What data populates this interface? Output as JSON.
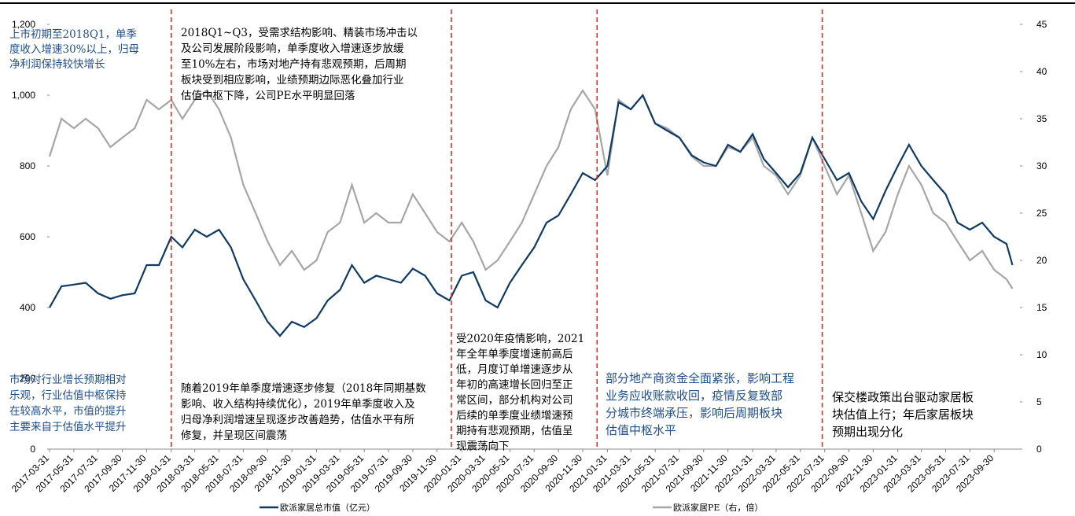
{
  "chart_data": {
    "type": "line",
    "x": [
      "2017-03-31",
      "2017-04-30",
      "2017-05-31",
      "2017-06-30",
      "2017-07-31",
      "2017-08-31",
      "2017-09-30",
      "2017-10-31",
      "2017-11-30",
      "2017-12-31",
      "2018-01-31",
      "2018-02-28",
      "2018-03-31",
      "2018-04-30",
      "2018-05-31",
      "2018-06-30",
      "2018-07-31",
      "2018-08-31",
      "2018-09-30",
      "2018-10-31",
      "2018-11-30",
      "2018-12-31",
      "2019-01-31",
      "2019-02-28",
      "2019-03-31",
      "2019-04-30",
      "2019-05-31",
      "2019-06-30",
      "2019-07-31",
      "2019-08-31",
      "2019-09-30",
      "2019-10-31",
      "2019-11-30",
      "2019-12-31",
      "2020-01-31",
      "2020-02-29",
      "2020-03-31",
      "2020-04-30",
      "2020-05-31",
      "2020-06-30",
      "2020-07-31",
      "2020-08-31",
      "2020-09-30",
      "2020-10-31",
      "2020-11-30",
      "2020-12-31",
      "2021-01-31",
      "2021-02-28",
      "2021-03-31",
      "2021-04-30",
      "2021-05-31",
      "2021-06-30",
      "2021-07-31",
      "2021-08-31",
      "2021-09-30",
      "2021-10-31",
      "2021-11-30",
      "2021-12-31",
      "2022-01-31",
      "2022-02-28",
      "2022-03-31",
      "2022-04-30",
      "2022-05-31",
      "2022-06-30",
      "2022-07-31",
      "2022-08-31",
      "2022-09-30",
      "2022-10-31",
      "2022-11-30",
      "2022-12-31",
      "2023-01-31",
      "2023-02-28",
      "2023-03-31",
      "2023-04-30",
      "2023-05-31",
      "2023-06-30",
      "2023-07-31",
      "2023-08-31",
      "2023-09-30",
      "2023-10-31",
      "2023-11-15"
    ],
    "series": [
      {
        "name": "欧派家居总市值（亿元）",
        "color": "#0d3a66",
        "axis": "y",
        "values": [
          400,
          460,
          465,
          470,
          440,
          425,
          435,
          440,
          520,
          520,
          600,
          570,
          620,
          600,
          620,
          570,
          480,
          420,
          360,
          320,
          360,
          345,
          370,
          420,
          450,
          520,
          470,
          490,
          480,
          470,
          510,
          490,
          440,
          420,
          490,
          500,
          420,
          400,
          470,
          520,
          570,
          640,
          660,
          720,
          780,
          760,
          800,
          980,
          960,
          1000,
          920,
          900,
          880,
          830,
          810,
          800,
          860,
          840,
          890,
          820,
          780,
          740,
          780,
          880,
          820,
          760,
          780,
          700,
          650,
          730,
          800,
          860,
          800,
          760,
          720,
          640,
          620,
          640,
          600,
          580,
          520
        ]
      },
      {
        "name": "欧派家居PE（右，倍）",
        "color": "#a6a6a6",
        "axis": "y2",
        "values": [
          31,
          35,
          34,
          35,
          34,
          32,
          33,
          34,
          37,
          36,
          37,
          35,
          37,
          38,
          36,
          33,
          28,
          25,
          22,
          19.5,
          21,
          19,
          20,
          23,
          24,
          28,
          24,
          25,
          24,
          24,
          27,
          25,
          23,
          22,
          24,
          22,
          19,
          20,
          22,
          24,
          27,
          30,
          32,
          36,
          38,
          36,
          29,
          37,
          36,
          37.5,
          34.5,
          34,
          33,
          31,
          30,
          30,
          32,
          31.5,
          33,
          30,
          29,
          27,
          29,
          33,
          30,
          27,
          29,
          25,
          21,
          23,
          27,
          30,
          28,
          25,
          24,
          22,
          20,
          21,
          19,
          18,
          17
        ]
      }
    ],
    "xlim": [
      "2017-03-31",
      "2023-11-20"
    ],
    "xticks": [
      "2017-03-31",
      "2017-05-31",
      "2017-07-31",
      "2017-09-30",
      "2017-11-30",
      "2018-01-31",
      "2018-03-31",
      "2018-05-31",
      "2018-07-31",
      "2018-09-30",
      "2018-11-30",
      "2019-01-31",
      "2019-03-31",
      "2019-05-31",
      "2019-07-31",
      "2019-09-30",
      "2019-11-30",
      "2020-01-31",
      "2020-03-31",
      "2020-05-31",
      "2020-07-31",
      "2020-09-30",
      "2020-11-30",
      "2021-01-31",
      "2021-03-31",
      "2021-05-31",
      "2021-07-31",
      "2021-09-30",
      "2021-11-30",
      "2022-01-31",
      "2022-03-31",
      "2022-05-31",
      "2022-07-31",
      "2022-09-30",
      "2022-11-30",
      "2023-01-31",
      "2023-03-31",
      "2023-05-31",
      "2023-07-31",
      "2023-09-30"
    ],
    "ylim": [
      0,
      1200
    ],
    "yticks": [
      0,
      200,
      400,
      600,
      800,
      {
        "value": 1000,
        "label": "1,000"
      },
      {
        "value": 1200,
        "label": "1,200"
      }
    ],
    "y2lim": [
      0,
      45
    ],
    "y2ticks": [
      0,
      5,
      10,
      15,
      20,
      25,
      30,
      35,
      40,
      45
    ],
    "vlines": [
      "2018-01-31",
      "2020-01-05",
      "2021-01-05",
      "2022-07-25"
    ],
    "vline_color": "#e8201a",
    "annotations": [
      {
        "color": "#1f4e8c",
        "lines": [
          "上市初期至2018Q1，单季",
          "度收入增速30%以上，归母",
          "净利润保持较快增长"
        ]
      },
      {
        "color": "#000000",
        "lines": [
          "2018Q1~Q3，受需求结构影响、精装市场冲击以",
          "及公司发展阶段影响，单季度收入增速逐步放缓",
          "至10%左右，市场对地产持有悲观预期，后周期",
          "板块受到相应影响，业绩预期边际恶化叠加行业",
          "估值中枢下降，公司PE水平明显回落"
        ]
      },
      {
        "color": "#1f4e8c",
        "lines": [
          "市场对行业增长预期相对",
          "乐观，行业估值中枢保持",
          "在较高水平，市值的提升",
          "主要来自于估值水平提升"
        ]
      },
      {
        "color": "#000000",
        "lines": [
          "随着2019年单季度增速逐步修复（2018年同期基数",
          "影响、收入结构持续优化），2019年单季度收入及",
          "归母净利润增速呈现逐步改善趋势，估值水平有所",
          "修复，并呈现区间震荡"
        ]
      },
      {
        "color": "#000000",
        "lines": [
          "受2020年疫情影响，2021",
          "年全年单季度增速前高后",
          "低，月度订单增速逐步从",
          "年初的高速增长回归至正",
          "常区间，部分机构对公司",
          "后续的单季度业绩增速预",
          "期持有悲观预期，估值呈",
          "现震荡向下"
        ]
      },
      {
        "color": "#1f4e8c",
        "lines": [
          "部分地产商资金全面紧张，影响工程",
          "业务应收账款收回，疫情反复致部",
          "分城市终端承压，影响后周期板块",
          "估值中枢水平"
        ]
      },
      {
        "color": "#000000",
        "lines": [
          "保交楼政策出台驱动家居板",
          "块估值上行；年后家居板块",
          "预期出现分化"
        ]
      }
    ]
  }
}
